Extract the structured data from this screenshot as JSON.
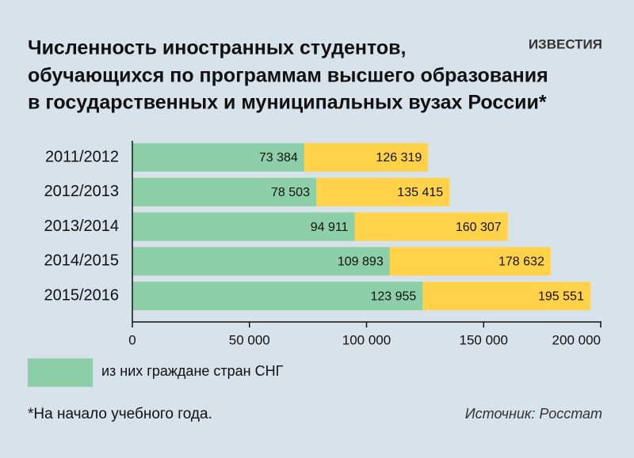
{
  "chart_data": {
    "type": "bar",
    "title": [
      "Численность иностранных студентов,",
      "обучающихся по программам высшего образования",
      "в государственных и муниципальных вузах России*"
    ],
    "logo": "ИЗВЕСТИЯ",
    "categories": [
      "2011/2012",
      "2012/2013",
      "2013/2014",
      "2014/2015",
      "2015/2016"
    ],
    "series": [
      {
        "color": "#ffd24a",
        "values": [
          126319,
          135415,
          160307,
          178632,
          195551
        ],
        "value_labels": [
          "126 319",
          "135 415",
          "160 307",
          "178 632",
          "195 551"
        ]
      },
      {
        "name": "из них граждане стран СНГ",
        "color": "#8ccfa8",
        "values": [
          73384,
          78503,
          94911,
          109893,
          123955
        ],
        "value_labels": [
          "73 384",
          "78 503",
          "94 911",
          "109 893",
          "123 955"
        ]
      }
    ],
    "xlim": [
      0,
      200000
    ],
    "xticks": [
      0,
      {
        "value": 50000,
        "label": "50 000"
      },
      {
        "value": 100000,
        "label": "100 000"
      },
      {
        "value": 150000,
        "label": "150 000"
      },
      {
        "value": 200000,
        "label": "200 000"
      }
    ],
    "footnote": "*На начало учебного года.",
    "source": "Источник: Росстат"
  }
}
